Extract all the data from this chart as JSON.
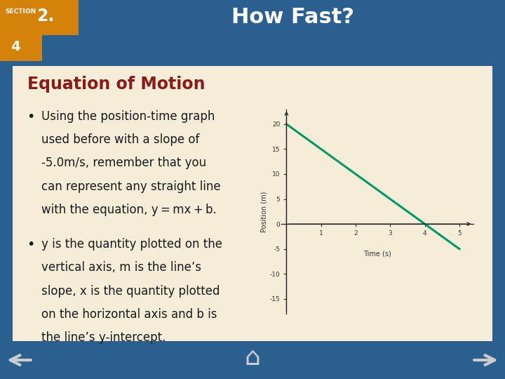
{
  "title": "How Fast?",
  "section_label": "SECTION",
  "section_number": "2.",
  "section_sub": "4",
  "heading": "Equation of Motion",
  "graph": {
    "x_start": 0,
    "x_end": 5,
    "slope": -5.0,
    "intercept": 20.0,
    "xlabel": "Time (s)",
    "ylabel": "Position (m)",
    "x_ticks": [
      1,
      2,
      3,
      4,
      5
    ],
    "y_ticks": [
      -15,
      -10,
      -5,
      0,
      5,
      10,
      15,
      20
    ],
    "ylim": [
      -18,
      23
    ],
    "xlim": [
      -0.15,
      5.4
    ],
    "line_color": "#009966",
    "line_width": 2.2
  },
  "bg_color": "#f5edd8",
  "header_bg": "#8B1A1A",
  "orange_bg": "#d4820a",
  "slide_bg": "#2a5f8f",
  "heading_color": "#8B1A1A",
  "text_color": "#1a1a1a",
  "header_text_color": "#ffffff",
  "content_border": "#8B1A1A",
  "footer_arrow_color": "#cccccc"
}
